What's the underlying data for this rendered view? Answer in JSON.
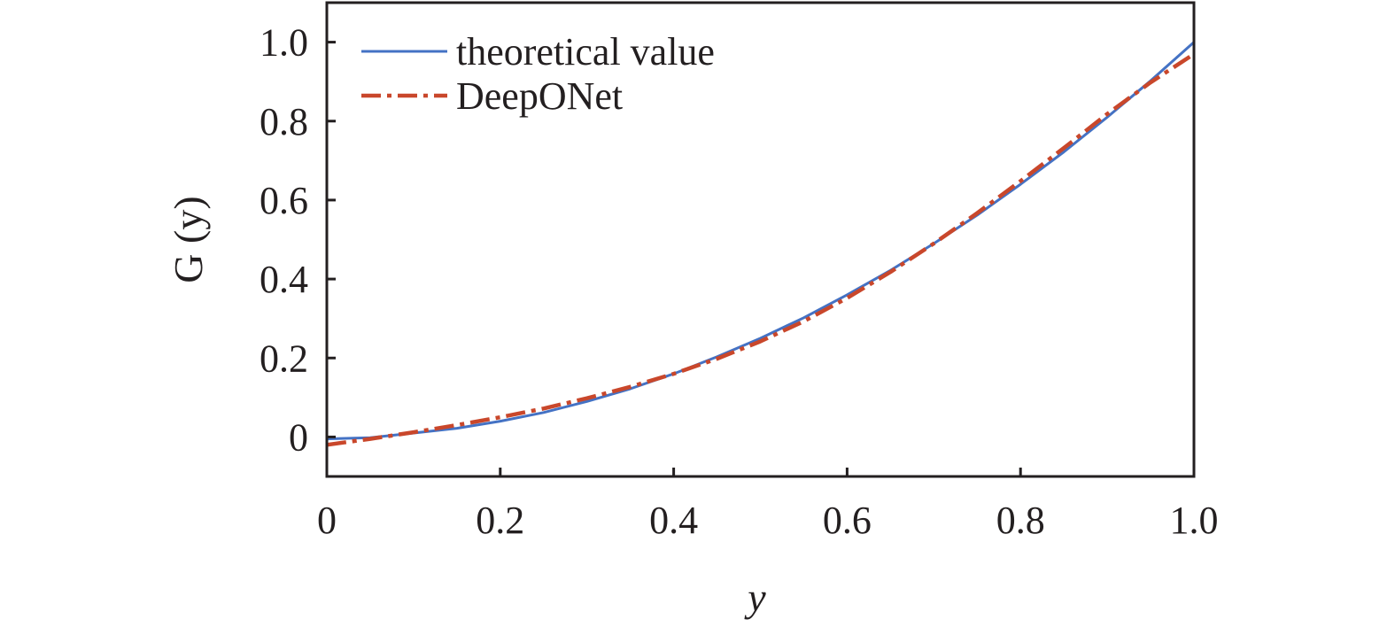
{
  "chart_data": {
    "type": "line",
    "xlabel": "y",
    "ylabel": "G (y)",
    "xlim": [
      0,
      1
    ],
    "ylim": [
      -0.1,
      1.1
    ],
    "x_ticks": [
      0,
      0.2,
      0.4,
      0.6,
      0.8,
      1.0
    ],
    "x_tick_labels": [
      "0",
      "0.2",
      "0.4",
      "0.6",
      "0.8",
      "1.0"
    ],
    "y_ticks": [
      0,
      0.2,
      0.4,
      0.6,
      0.8,
      1.0
    ],
    "y_tick_labels": [
      "0",
      "0.2",
      "0.4",
      "0.6",
      "0.8",
      "1.0"
    ],
    "grid": false,
    "legend_position": "top-left",
    "series": [
      {
        "name": "theoretical value",
        "color": "#4472c4",
        "style": "solid",
        "x": [
          0,
          0.05,
          0.1,
          0.15,
          0.2,
          0.25,
          0.3,
          0.35,
          0.4,
          0.45,
          0.5,
          0.55,
          0.6,
          0.65,
          0.7,
          0.75,
          0.8,
          0.85,
          0.9,
          0.95,
          1.0
        ],
        "y": [
          -0.005,
          -0.002,
          0.01,
          0.022,
          0.04,
          0.062,
          0.09,
          0.122,
          0.16,
          0.203,
          0.25,
          0.302,
          0.36,
          0.422,
          0.49,
          0.562,
          0.64,
          0.722,
          0.81,
          0.902,
          1.0
        ]
      },
      {
        "name": "DeepONet",
        "color": "#c9472b",
        "style": "dash-dot",
        "x": [
          0,
          0.05,
          0.1,
          0.15,
          0.2,
          0.25,
          0.3,
          0.35,
          0.4,
          0.45,
          0.5,
          0.55,
          0.6,
          0.65,
          0.7,
          0.75,
          0.8,
          0.85,
          0.9,
          0.95,
          1.0
        ],
        "y": [
          -0.02,
          -0.005,
          0.012,
          0.03,
          0.05,
          0.072,
          0.098,
          0.127,
          0.16,
          0.198,
          0.242,
          0.293,
          0.352,
          0.418,
          0.49,
          0.567,
          0.648,
          0.732,
          0.818,
          0.898,
          0.97
        ]
      }
    ]
  }
}
